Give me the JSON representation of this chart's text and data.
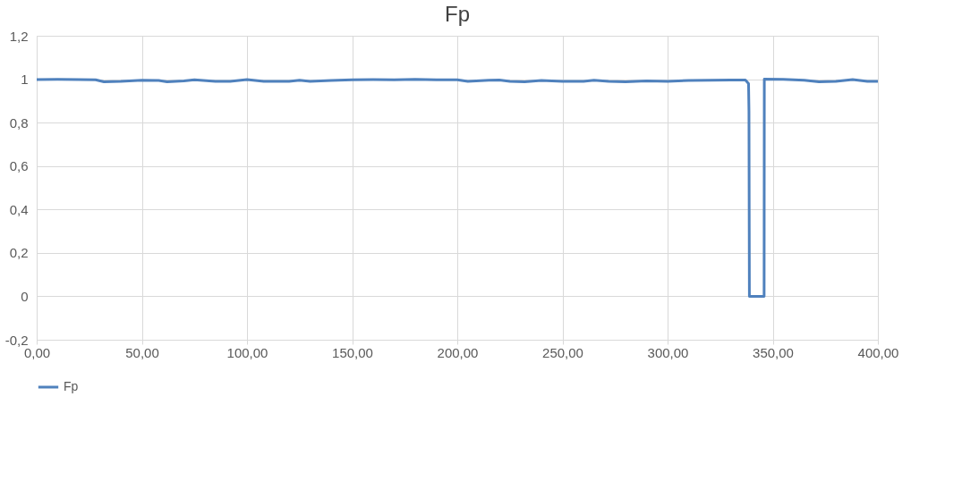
{
  "chart_data": {
    "type": "line",
    "title": "Fp",
    "legend": "bottom",
    "grid": true,
    "xlim": [
      0,
      400
    ],
    "xticks": [
      {
        "value": 0,
        "label": "0,00"
      },
      {
        "value": 50,
        "label": "50,00"
      },
      {
        "value": 100,
        "label": "100,00"
      },
      {
        "value": 150,
        "label": "150,00"
      },
      {
        "value": 200,
        "label": "200,00"
      },
      {
        "value": 250,
        "label": "250,00"
      },
      {
        "value": 300,
        "label": "300,00"
      },
      {
        "value": 350,
        "label": "350,00"
      },
      {
        "value": 400,
        "label": "400,00"
      }
    ],
    "ylim": [
      -0.2,
      1.2
    ],
    "yticks": [
      {
        "value": -0.2,
        "label": "-0,2"
      },
      0,
      {
        "value": 0.2,
        "label": "0,2"
      },
      {
        "value": 0.4,
        "label": "0,4"
      },
      {
        "value": 0.6,
        "label": "0,6"
      },
      {
        "value": 0.8,
        "label": "0,8"
      },
      1,
      {
        "value": 1.2,
        "label": "1,2"
      }
    ],
    "series": [
      {
        "name": "Fp",
        "color": "#4f81bd",
        "x": [
          0,
          10,
          20,
          28,
          32,
          40,
          50,
          58,
          62,
          70,
          75,
          85,
          92,
          100,
          108,
          120,
          125,
          130,
          140,
          150,
          160,
          170,
          180,
          190,
          200,
          205,
          215,
          220,
          225,
          232,
          240,
          250,
          260,
          265,
          272,
          280,
          290,
          300,
          310,
          320,
          330,
          337,
          338.5,
          338.7,
          338.9,
          345.9,
          346,
          355,
          365,
          372,
          380,
          388,
          395,
          400
        ],
        "values": [
          0.998,
          0.999,
          0.998,
          0.997,
          0.988,
          0.99,
          0.995,
          0.994,
          0.988,
          0.992,
          0.997,
          0.99,
          0.99,
          0.998,
          0.99,
          0.99,
          0.995,
          0.99,
          0.994,
          0.997,
          0.998,
          0.997,
          0.999,
          0.997,
          0.997,
          0.99,
          0.995,
          0.996,
          0.99,
          0.988,
          0.994,
          0.99,
          0.99,
          0.995,
          0.99,
          0.988,
          0.992,
          0.99,
          0.994,
          0.995,
          0.996,
          0.996,
          0.98,
          0.85,
          0,
          0,
          1.0,
          0.999,
          0.995,
          0.988,
          0.99,
          0.998,
          0.99,
          0.99
        ]
      }
    ]
  }
}
